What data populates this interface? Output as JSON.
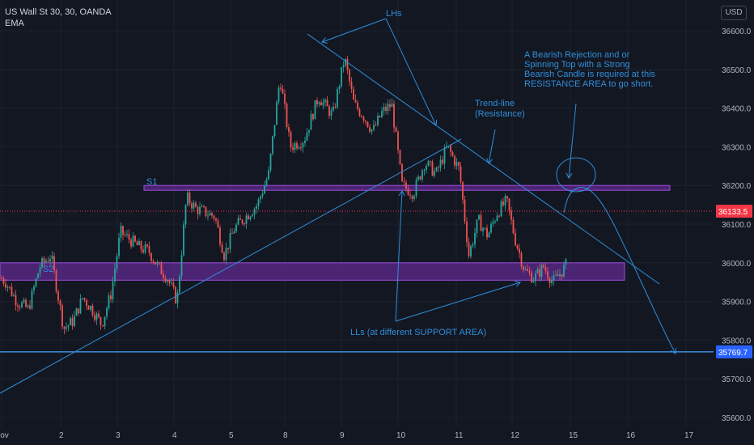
{
  "header": {
    "symbol_line": "US Wall St 30, 30, OANDA",
    "indicator_label": "EMA",
    "currency_label": "USD"
  },
  "colors": {
    "background": "#131722",
    "bull": "#26a69a",
    "bear": "#ef5350",
    "annotation": "#2f8ed8",
    "zone": "#7b2fb8",
    "horizontal_line": "#4aa3ff",
    "price_tag": "#f23645",
    "axis_text": "#b2b5be"
  },
  "chart_data": {
    "type": "candlestick",
    "instrument": "US Wall St 30",
    "timeframe": "30",
    "source": "OANDA",
    "ylim": [
      35580,
      36690
    ],
    "y_ticks": [
      35600.0,
      35700.0,
      35800.0,
      35900.0,
      36000.0,
      36100.0,
      36200.0,
      36300.0,
      36400.0,
      36500.0,
      36600.0
    ],
    "x_ticks": [
      "Nov",
      "2",
      "3",
      "4",
      "5",
      "8",
      "9",
      "10",
      "11",
      "12",
      "15",
      "16",
      "17"
    ],
    "current_price": "36133.5",
    "price_marker": "35769.7",
    "price_path": [
      [
        "Nov",
        35950
      ],
      [
        "Nov",
        35900
      ],
      [
        "Nov",
        35880
      ],
      [
        "Nov",
        35990
      ],
      [
        "Nov",
        36020
      ],
      [
        "2",
        35830
      ],
      [
        "2",
        35850
      ],
      [
        "2",
        35910
      ],
      [
        "2",
        35880
      ],
      [
        "2",
        35840
      ],
      [
        "2",
        35920
      ],
      [
        "3",
        36080
      ],
      [
        "3",
        36060
      ],
      [
        "3",
        36040
      ],
      [
        "3",
        36030
      ],
      [
        "3",
        35990
      ],
      [
        "3",
        35960
      ],
      [
        "4",
        35900
      ],
      [
        "4",
        36170
      ],
      [
        "4",
        36140
      ],
      [
        "4",
        36130
      ],
      [
        "4",
        36120
      ],
      [
        "4",
        36020
      ],
      [
        "5",
        36090
      ],
      [
        "5",
        36120
      ],
      [
        "5",
        36150
      ],
      [
        "5",
        36230
      ],
      [
        "5",
        36480
      ],
      [
        "8",
        36300
      ],
      [
        "8",
        36320
      ],
      [
        "8",
        36430
      ],
      [
        "8",
        36380
      ],
      [
        "9",
        36530
      ],
      [
        "9",
        36410
      ],
      [
        "9",
        36380
      ],
      [
        "9",
        36340
      ],
      [
        "9",
        36390
      ],
      [
        "9",
        36410
      ],
      [
        "10",
        36200
      ],
      [
        "10",
        36180
      ],
      [
        "10",
        36260
      ],
      [
        "10",
        36230
      ],
      [
        "10",
        36300
      ],
      [
        "11",
        36240
      ],
      [
        "11",
        36020
      ],
      [
        "11",
        36110
      ],
      [
        "11",
        36070
      ],
      [
        "11",
        36130
      ],
      [
        "11",
        36160
      ],
      [
        "12",
        36060
      ],
      [
        "12",
        35980
      ],
      [
        "12",
        35960
      ],
      [
        "12",
        35990
      ],
      [
        "12",
        35950
      ],
      [
        "12",
        35980
      ],
      [
        "15",
        36060
      ],
      [
        "15",
        36140
      ]
    ],
    "zones": [
      {
        "label": "S1",
        "from": 36190,
        "to": 36200
      },
      {
        "label": "S2",
        "from": 35955,
        "to": 36000
      }
    ],
    "annotations": [
      {
        "text": "LHs"
      },
      {
        "lines": [
          "A Bearish Rejection and or",
          "Spinning Top with a Strong",
          "Bearish Candle is required at this",
          "RESISTANCE AREA to go short."
        ]
      },
      {
        "lines": [
          "Trend-line",
          "(Resistance)"
        ]
      },
      {
        "text": "LLs (at different SUPPORT AREA)"
      }
    ]
  }
}
